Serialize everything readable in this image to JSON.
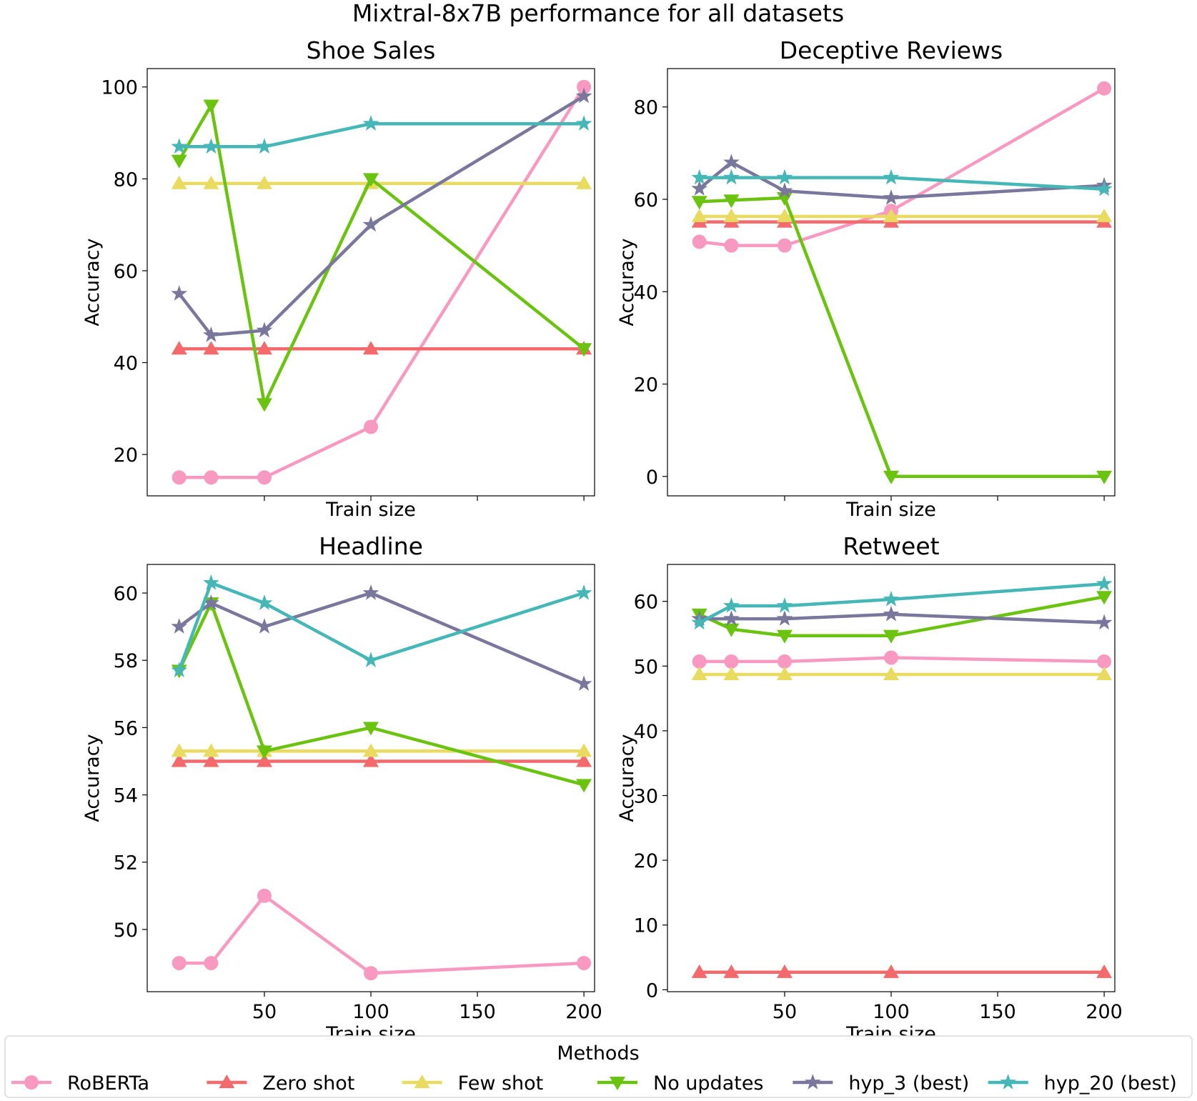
{
  "suptitle": "Mixtral-8x7B performance for all datasets",
  "legend": {
    "title": "Methods",
    "placement": "bottom-center"
  },
  "methods": [
    {
      "name": "RoBERTa",
      "color": "#f899c1",
      "marker": "circle"
    },
    {
      "name": "Zero shot",
      "color": "#f4696b",
      "marker": "triangle-up"
    },
    {
      "name": "Few shot",
      "color": "#e8db5f",
      "marker": "triangle-up"
    },
    {
      "name": "No updates",
      "color": "#6ac30f",
      "marker": "triangle-down"
    },
    {
      "name": "hyp_3 (best)",
      "color": "#7a779c",
      "marker": "star"
    },
    {
      "name": "hyp_20 (best)",
      "color": "#45b7b6",
      "marker": "star"
    }
  ],
  "chart_data": [
    {
      "type": "line",
      "title": "Shoe Sales",
      "xlabel": "Train size",
      "ylabel": "Accuracy",
      "x": [
        10,
        25,
        50,
        100,
        200
      ],
      "xlim": [
        -5,
        205
      ],
      "xticks": [
        50,
        100,
        150,
        200
      ],
      "show_xtick_labels": false,
      "ylim": [
        11,
        104
      ],
      "yticks": [
        20,
        40,
        60,
        80,
        100
      ],
      "grid": false,
      "series": [
        {
          "name": "RoBERTa",
          "values": [
            15,
            15,
            15,
            26,
            100
          ]
        },
        {
          "name": "Zero shot",
          "values": [
            43,
            43,
            43,
            43,
            43
          ]
        },
        {
          "name": "Few shot",
          "values": [
            79,
            79,
            79,
            79,
            79
          ]
        },
        {
          "name": "No updates",
          "values": [
            84,
            96,
            31,
            80,
            43
          ]
        },
        {
          "name": "hyp_3 (best)",
          "values": [
            55,
            46,
            47,
            70,
            98
          ]
        },
        {
          "name": "hyp_20 (best)",
          "values": [
            87,
            87,
            87,
            92,
            92
          ]
        }
      ]
    },
    {
      "type": "line",
      "title": "Deceptive Reviews",
      "xlabel": "Train size",
      "ylabel": "Accuracy",
      "x": [
        10,
        25,
        50,
        100,
        200
      ],
      "xlim": [
        -5,
        205
      ],
      "xticks": [
        50,
        100,
        150,
        200
      ],
      "show_xtick_labels": false,
      "ylim": [
        -4.2,
        88.3
      ],
      "yticks": [
        0,
        20,
        40,
        60,
        80
      ],
      "grid": false,
      "series": [
        {
          "name": "RoBERTa",
          "values": [
            50.8,
            50,
            50,
            57.5,
            84
          ]
        },
        {
          "name": "Zero shot",
          "values": [
            55.1,
            55.1,
            55.1,
            55.1,
            55.1
          ]
        },
        {
          "name": "Few shot",
          "values": [
            56.3,
            56.3,
            56.3,
            56.3,
            56.3
          ]
        },
        {
          "name": "No updates",
          "values": [
            59.5,
            59.8,
            60.3,
            0,
            0
          ]
        },
        {
          "name": "hyp_3 (best)",
          "values": [
            62.3,
            68,
            61.8,
            60.3,
            63
          ]
        },
        {
          "name": "hyp_20 (best)",
          "values": [
            64.7,
            64.7,
            64.7,
            64.7,
            62.2
          ]
        }
      ]
    },
    {
      "type": "line",
      "title": "Headline",
      "xlabel": "Train size",
      "ylabel": "Accuracy",
      "x": [
        10,
        25,
        50,
        100,
        200
      ],
      "xlim": [
        -5,
        205
      ],
      "xticks": [
        50,
        100,
        150,
        200
      ],
      "show_xtick_labels": true,
      "ylim": [
        48.15,
        60.85
      ],
      "yticks": [
        50,
        52,
        54,
        56,
        58,
        60
      ],
      "grid": false,
      "series": [
        {
          "name": "RoBERTa",
          "values": [
            49,
            49,
            51,
            48.7,
            49
          ]
        },
        {
          "name": "Zero shot",
          "values": [
            55,
            55,
            55,
            55,
            55
          ]
        },
        {
          "name": "Few shot",
          "values": [
            55.3,
            55.3,
            55.3,
            55.3,
            55.3
          ]
        },
        {
          "name": "No updates",
          "values": [
            57.7,
            59.7,
            55.3,
            56,
            54.3
          ]
        },
        {
          "name": "hyp_3 (best)",
          "values": [
            59,
            59.7,
            59,
            60,
            57.3
          ]
        },
        {
          "name": "hyp_20 (best)",
          "values": [
            57.7,
            60.3,
            59.7,
            58,
            60
          ]
        }
      ]
    },
    {
      "type": "line",
      "title": "Retweet",
      "xlabel": "Train size",
      "ylabel": "Accuracy",
      "x": [
        10,
        25,
        50,
        100,
        200
      ],
      "xlim": [
        -5,
        205
      ],
      "xticks": [
        50,
        100,
        150,
        200
      ],
      "show_xtick_labels": true,
      "ylim": [
        -0.3,
        65.7
      ],
      "yticks": [
        0,
        10,
        20,
        30,
        40,
        50,
        60
      ],
      "grid": false,
      "series": [
        {
          "name": "RoBERTa",
          "values": [
            50.7,
            50.7,
            50.7,
            51.3,
            50.7
          ]
        },
        {
          "name": "Zero shot",
          "values": [
            2.7,
            2.7,
            2.7,
            2.7,
            2.7
          ]
        },
        {
          "name": "Few shot",
          "values": [
            48.7,
            48.7,
            48.7,
            48.7,
            48.7
          ]
        },
        {
          "name": "No updates",
          "values": [
            58,
            55.7,
            54.7,
            54.7,
            60.7
          ]
        },
        {
          "name": "hyp_3 (best)",
          "values": [
            57.3,
            57.3,
            57.3,
            58,
            56.7
          ]
        },
        {
          "name": "hyp_20 (best)",
          "values": [
            56.7,
            59.3,
            59.3,
            60.3,
            62.7
          ]
        }
      ]
    }
  ]
}
